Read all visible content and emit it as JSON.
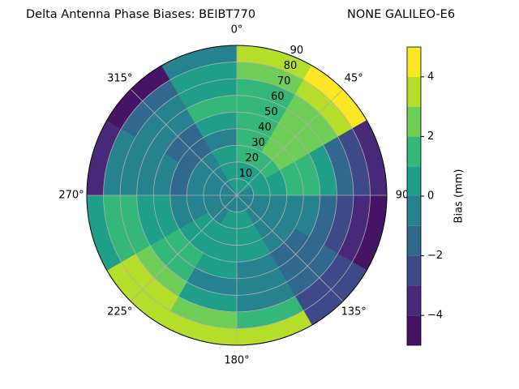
{
  "chart_data": {
    "type": "polar-contour",
    "title": "Delta Antenna Phase Biases: BEIBT770",
    "subtitle": "NONE GALILEO-E6",
    "azimuth_edges": [
      0,
      30,
      60,
      90,
      120,
      150,
      180,
      210,
      240,
      270,
      300,
      330,
      360
    ],
    "zenith_edges": [
      0,
      10,
      20,
      30,
      40,
      50,
      60,
      70,
      80,
      90
    ],
    "values": [
      [
        0,
        0.5,
        1,
        1.5,
        1.5,
        1.5,
        1.5,
        2.5,
        3.5
      ],
      [
        0,
        0.5,
        1.5,
        2,
        2.5,
        2,
        2.5,
        3.5,
        4.5
      ],
      [
        -0.5,
        0,
        0.5,
        1.5,
        1,
        0,
        -1.5,
        -2.5,
        -3.5
      ],
      [
        -0.5,
        -0.5,
        -0.5,
        -0.5,
        -1,
        -1.5,
        -2.5,
        -3.5,
        -4.5
      ],
      [
        -0.5,
        -0.5,
        -0.5,
        -1,
        -1.5,
        -1.5,
        -2,
        -2.5,
        -2.5
      ],
      [
        -0.5,
        0,
        0.5,
        0,
        -0.5,
        -1,
        -0.5,
        1,
        3
      ],
      [
        -0.5,
        0,
        0.5,
        0.5,
        0,
        -0.5,
        0.5,
        2.5,
        3.5
      ],
      [
        -0.5,
        -0.5,
        0,
        0.5,
        1,
        1.5,
        2.5,
        3.5,
        3.5
      ],
      [
        -0.5,
        -0.5,
        -0.5,
        -0.5,
        0,
        0.5,
        1,
        1.5,
        0.5
      ],
      [
        -0.5,
        -0.5,
        -1,
        -1.5,
        -1,
        -0.5,
        -0.5,
        -1,
        -3.5
      ],
      [
        -0.5,
        -0.5,
        -1,
        -1.5,
        -1.5,
        -1,
        -0.5,
        -1.5,
        -4.5
      ],
      [
        0,
        0.5,
        0.5,
        -0.5,
        0.5,
        1,
        0.5,
        0.5,
        -0.5
      ]
    ],
    "levels": [
      -5,
      -4,
      -3,
      -2,
      -1,
      0,
      1,
      2,
      3,
      4,
      5
    ],
    "colors": [
      "#471365",
      "#482878",
      "#3e4989",
      "#31688e",
      "#26828e",
      "#1f9e89",
      "#35b779",
      "#6ece58",
      "#b5de2b",
      "#fde725"
    ],
    "rlim": [
      0,
      90
    ],
    "rticks": [
      10,
      20,
      30,
      40,
      50,
      60,
      70,
      80,
      90
    ],
    "thetaticks": [
      {
        "value": 0,
        "label": "0°"
      },
      {
        "value": 45,
        "label": "45°"
      },
      {
        "value": 90,
        "label": "90"
      },
      {
        "value": 135,
        "label": "135°"
      },
      {
        "value": 180,
        "label": "180°"
      },
      {
        "value": 225,
        "label": "225°"
      },
      {
        "value": 270,
        "label": "270°"
      },
      {
        "value": 315,
        "label": "315°"
      }
    ],
    "colorbar_label": "Bias (mm)",
    "colorbar_ticks": [
      {
        "value": -4,
        "label": "−4"
      },
      {
        "value": -2,
        "label": "−2"
      },
      0,
      2,
      4
    ],
    "grid": true
  }
}
